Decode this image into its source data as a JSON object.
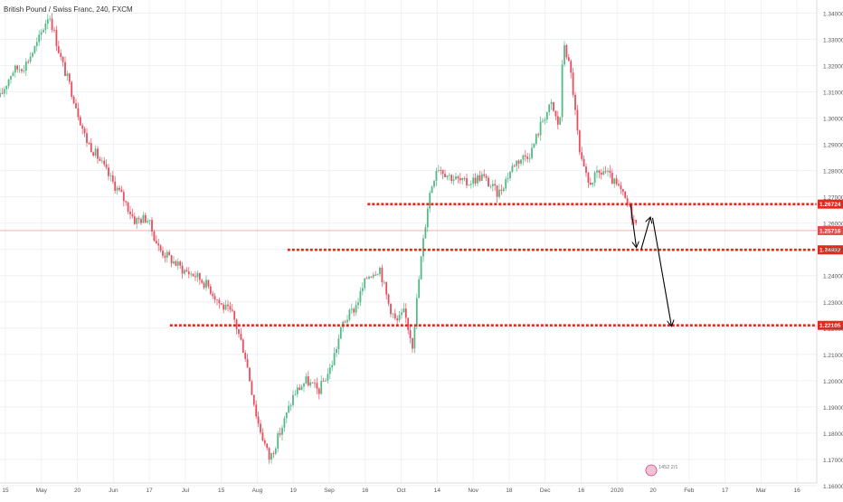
{
  "header": {
    "title": "British Pound / Swiss Franc, 240, FXCM"
  },
  "watermark": {
    "text": "1452 2/1"
  },
  "colors": {
    "up": "#53b987",
    "down": "#eb4d5c",
    "level": "#e5281b",
    "current_price": "#e34a4a",
    "grid": "#eef1f5",
    "axis_text": "#555555",
    "arrow": "#000000"
  },
  "chart_data": {
    "type": "candlestick",
    "title": "British Pound / Swiss Franc, 240, FXCM",
    "ylim": [
      1.161,
      1.345
    ],
    "y_ticks": [
      "1.16000",
      "1.17000",
      "1.18000",
      "1.19000",
      "1.20000",
      "1.21000",
      "1.22000",
      "1.23000",
      "1.24000",
      "1.25000",
      "1.26000",
      "1.27000",
      "1.28000",
      "1.29000",
      "1.30000",
      "1.31000",
      "1.32000",
      "1.33000",
      "1.34000"
    ],
    "x_ticks": [
      "15",
      "May",
      "20",
      "Jun",
      "17",
      "Jul",
      "15",
      "Aug",
      "19",
      "Sep",
      "16",
      "Oct",
      "14",
      "Nov",
      "18",
      "Dec",
      "16",
      "2020",
      "20",
      "Feb",
      "17",
      "Mar",
      "16"
    ],
    "path": [
      [
        0,
        1.308
      ],
      [
        0.015,
        1.318
      ],
      [
        0.03,
        1.32
      ],
      [
        0.045,
        1.328
      ],
      [
        0.06,
        1.34
      ],
      [
        0.075,
        1.322
      ],
      [
        0.09,
        1.308
      ],
      [
        0.105,
        1.292
      ],
      [
        0.12,
        1.285
      ],
      [
        0.135,
        1.277
      ],
      [
        0.15,
        1.27
      ],
      [
        0.165,
        1.261
      ],
      [
        0.18,
        1.262
      ],
      [
        0.195,
        1.25
      ],
      [
        0.21,
        1.246
      ],
      [
        0.225,
        1.242
      ],
      [
        0.24,
        1.24
      ],
      [
        0.255,
        1.236
      ],
      [
        0.27,
        1.229
      ],
      [
        0.285,
        1.225
      ],
      [
        0.3,
        1.21
      ],
      [
        0.315,
        1.185
      ],
      [
        0.33,
        1.17
      ],
      [
        0.345,
        1.182
      ],
      [
        0.36,
        1.195
      ],
      [
        0.375,
        1.2
      ],
      [
        0.39,
        1.196
      ],
      [
        0.405,
        1.205
      ],
      [
        0.42,
        1.222
      ],
      [
        0.435,
        1.228
      ],
      [
        0.45,
        1.24
      ],
      [
        0.465,
        1.243
      ],
      [
        0.475,
        1.23
      ],
      [
        0.485,
        1.222
      ],
      [
        0.495,
        1.226
      ],
      [
        0.505,
        1.214
      ],
      [
        0.515,
        1.245
      ],
      [
        0.525,
        1.27
      ],
      [
        0.535,
        1.282
      ],
      [
        0.55,
        1.278
      ],
      [
        0.57,
        1.275
      ],
      [
        0.59,
        1.278
      ],
      [
        0.61,
        1.271
      ],
      [
        0.63,
        1.283
      ],
      [
        0.65,
        1.287
      ],
      [
        0.665,
        1.3
      ],
      [
        0.675,
        1.305
      ],
      [
        0.685,
        1.296
      ],
      [
        0.69,
        1.33
      ],
      [
        0.7,
        1.315
      ],
      [
        0.71,
        1.285
      ],
      [
        0.72,
        1.275
      ],
      [
        0.73,
        1.278
      ],
      [
        0.74,
        1.28
      ],
      [
        0.75,
        1.276
      ],
      [
        0.76,
        1.272
      ],
      [
        0.77,
        1.266
      ],
      [
        0.78,
        1.258
      ]
    ],
    "levels": [
      {
        "price": 1.26724,
        "label": "1.26724",
        "from": 0.45
      },
      {
        "price": 1.24982,
        "label": "1.24982",
        "from": 0.352
      },
      {
        "price": 1.22105,
        "label": "1.22105",
        "from": 0.208
      }
    ],
    "current_price": {
      "price": 1.25716,
      "label": "1.25716"
    },
    "projection_arrows": [
      [
        [
          0.772,
          1.267
        ],
        [
          0.779,
          1.251
        ]
      ],
      [
        [
          0.785,
          1.25
        ],
        [
          0.796,
          1.262
        ]
      ],
      [
        [
          0.799,
          1.262
        ],
        [
          0.822,
          1.221
        ]
      ]
    ]
  }
}
